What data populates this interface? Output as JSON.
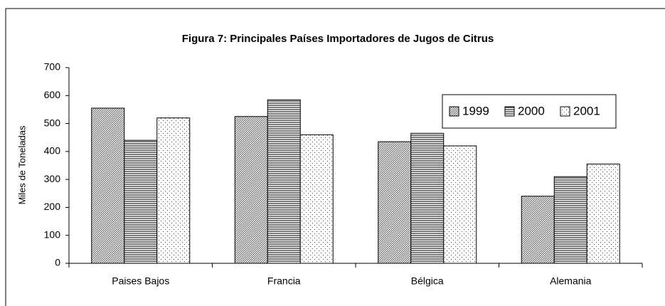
{
  "chart_data": {
    "type": "bar",
    "title": "Figura 7: Principales Países Importadores de Jugos de Citrus",
    "y_label": "Miles de Toneladas",
    "categories": [
      "Paises Bajos",
      "Francia",
      "Bélgica",
      "Alemania"
    ],
    "series": [
      {
        "name": "1999",
        "color": "#000000",
        "pattern": "diagonal",
        "values": [
          555,
          525,
          435,
          240
        ]
      },
      {
        "name": "2000",
        "color": "#000000",
        "pattern": "horizontal",
        "values": [
          440,
          585,
          465,
          310
        ]
      },
      {
        "name": "2001",
        "color": "#000000",
        "pattern": "dotted",
        "values": [
          520,
          460,
          420,
          355
        ]
      }
    ],
    "ylim": [
      0,
      700
    ],
    "yticks": [
      0,
      100,
      200,
      300,
      400,
      500,
      600,
      700
    ],
    "legend": "right"
  }
}
